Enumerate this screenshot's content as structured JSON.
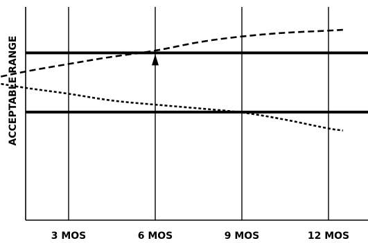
{
  "chart_data": {
    "type": "line",
    "title": "",
    "xlabel": "",
    "ylabel": "ACCEPTABLE RANGE",
    "categories": [
      "3 MOS",
      "6 MOS",
      "9 MOS",
      "12 MOS"
    ],
    "x_months": [
      3,
      6,
      9,
      12
    ],
    "xlim": [
      0,
      12.5
    ],
    "ylim": [
      0,
      100
    ],
    "grid": "vertical lines at each month tick",
    "acceptable_range": {
      "upper": 80,
      "lower": 48
    },
    "series": [
      {
        "style": "dashed",
        "points": [
          [
            0,
            65
          ],
          [
            1.5,
            70
          ],
          [
            3,
            74
          ],
          [
            4.5,
            78
          ],
          [
            6,
            81
          ],
          [
            7.5,
            86
          ],
          [
            9,
            89
          ],
          [
            10.5,
            91
          ],
          [
            12,
            92
          ],
          [
            12.5,
            92.5
          ]
        ]
      },
      {
        "style": "dotted",
        "points": [
          [
            0,
            65
          ],
          [
            1.5,
            61
          ],
          [
            3,
            58
          ],
          [
            4.5,
            54
          ],
          [
            6,
            52
          ],
          [
            7.5,
            50
          ],
          [
            9,
            48
          ],
          [
            10.5,
            44
          ],
          [
            12,
            39
          ],
          [
            12.5,
            38
          ]
        ]
      }
    ],
    "annotation": {
      "type": "arrow",
      "at_month": 6,
      "points_to": "upper limit"
    }
  }
}
